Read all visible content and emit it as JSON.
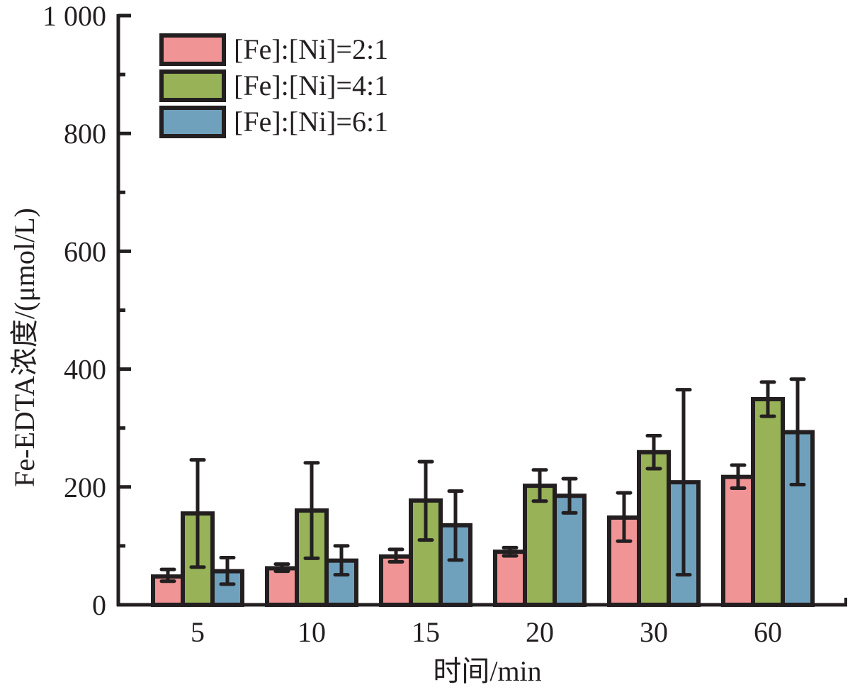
{
  "chart_data": {
    "type": "bar",
    "title": "",
    "xlabel": "时间/min",
    "ylabel": "Fe-EDTA浓度/(μmol/L)",
    "categories": [
      "5",
      "10",
      "15",
      "20",
      "30",
      "60"
    ],
    "ylim": [
      0,
      1000
    ],
    "yticks": [
      0,
      200,
      400,
      600,
      800,
      1000
    ],
    "ytick_labels": [
      "0",
      "200",
      "400",
      "600",
      "800",
      "1 000"
    ],
    "y_minor_step": 100,
    "grid": false,
    "legend_position": "top-left",
    "error_bars": true,
    "series": [
      {
        "name": "[Fe]:[Ni]=2:1",
        "color": "#f09496",
        "values": [
          48,
          62,
          82,
          90,
          148,
          217
        ],
        "err_low": [
          40,
          57,
          73,
          83,
          108,
          198
        ],
        "err_high": [
          60,
          69,
          94,
          97,
          190,
          237
        ]
      },
      {
        "name": "[Fe]:[Ni]=4:1",
        "color": "#97b257",
        "values": [
          155,
          160,
          177,
          202,
          259,
          349
        ],
        "err_low": [
          64,
          79,
          110,
          176,
          231,
          320
        ],
        "err_high": [
          246,
          241,
          243,
          229,
          287,
          378
        ]
      },
      {
        "name": "[Fe]:[Ni]=6:1",
        "color": "#6fa1bd",
        "values": [
          57,
          75,
          135,
          185,
          208,
          293
        ],
        "err_low": [
          35,
          51,
          76,
          156,
          51,
          204
        ],
        "err_high": [
          80,
          100,
          193,
          214,
          365,
          383
        ]
      }
    ]
  }
}
